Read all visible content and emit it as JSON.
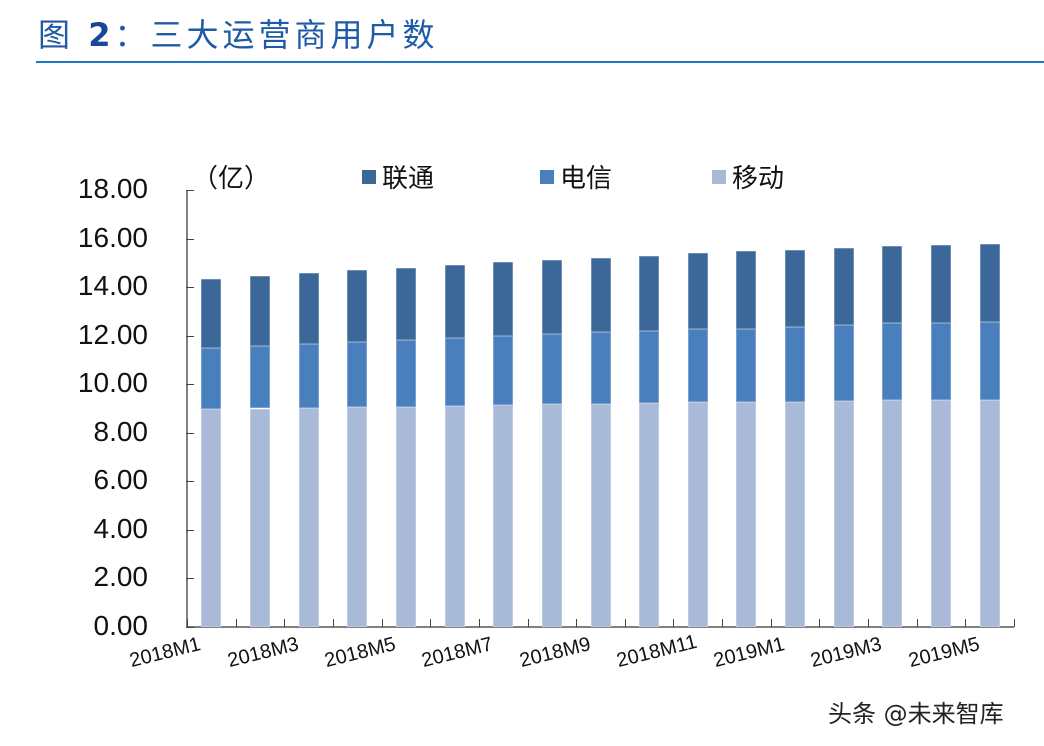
{
  "header": {
    "figure_prefix": "图",
    "figure_number": "2",
    "figure_title": "：三大运营商用户数"
  },
  "watermark": "头条 @未来智库",
  "chart_data": {
    "type": "bar",
    "stacked": true,
    "title": "图 2：三大运营商用户数",
    "unit_label": "（亿）",
    "xlabel": "",
    "ylabel": "（亿）",
    "ylim": [
      0,
      18
    ],
    "yticks": [
      "0.00",
      "2.00",
      "4.00",
      "6.00",
      "8.00",
      "10.00",
      "12.00",
      "14.00",
      "16.00",
      "18.00"
    ],
    "legend_position": "top",
    "grid": false,
    "categories": [
      "2018M1",
      "2018M2",
      "2018M3",
      "2018M4",
      "2018M5",
      "2018M6",
      "2018M7",
      "2018M8",
      "2018M9",
      "2018M10",
      "2018M11",
      "2018M12",
      "2019M1",
      "2019M2",
      "2019M3",
      "2019M4",
      "2019M5"
    ],
    "xtick_labels_shown": [
      "2018M1",
      "2018M3",
      "2018M5",
      "2018M7",
      "2018M9",
      "2018M11",
      "2019M1",
      "2019M3",
      "2019M5"
    ],
    "series": [
      {
        "name": "移动",
        "color": "#a9b9d8",
        "values": [
          8.98,
          9.0,
          9.03,
          9.05,
          9.07,
          9.1,
          9.14,
          9.17,
          9.2,
          9.22,
          9.25,
          9.25,
          9.28,
          9.31,
          9.33,
          9.34,
          9.35
        ]
      },
      {
        "name": "电信",
        "color": "#4a7fbe",
        "values": [
          2.51,
          2.58,
          2.64,
          2.7,
          2.76,
          2.81,
          2.85,
          2.89,
          2.94,
          2.98,
          3.01,
          3.03,
          3.08,
          3.11,
          3.19,
          3.2,
          3.21
        ]
      },
      {
        "name": "联通",
        "color": "#3c6899",
        "values": [
          2.84,
          2.86,
          2.93,
          2.94,
          2.97,
          2.99,
          3.04,
          3.07,
          3.07,
          3.09,
          3.14,
          3.2,
          3.18,
          3.2,
          3.17,
          3.21,
          3.21
        ]
      }
    ],
    "totals": [
      14.33,
      14.44,
      14.6,
      14.69,
      14.8,
      14.9,
      15.03,
      15.13,
      15.21,
      15.29,
      15.4,
      15.48,
      15.54,
      15.62,
      15.69,
      15.75,
      15.77
    ]
  },
  "legend": [
    {
      "label": "联通",
      "color": "#3c6899"
    },
    {
      "label": "电信",
      "color": "#4a7fbe"
    },
    {
      "label": "移动",
      "color": "#a9b9d8"
    }
  ]
}
